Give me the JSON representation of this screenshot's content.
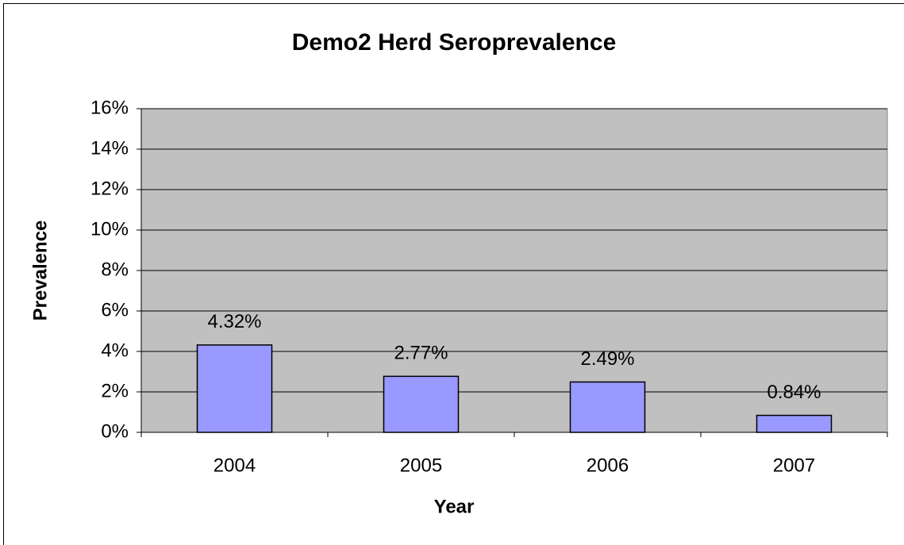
{
  "chart_data": {
    "type": "bar",
    "title": "Demo2 Herd Seroprevalence",
    "x_label": "Year",
    "y_label": "Prevalence",
    "categories": [
      "2004",
      "2005",
      "2006",
      "2007"
    ],
    "values": [
      4.32,
      2.77,
      2.49,
      0.84
    ],
    "value_labels": [
      "4.32%",
      "2.77%",
      "2.49%",
      "0.84%"
    ],
    "color": "#9999ff",
    "ylim": [
      0,
      16
    ],
    "yticks": [
      {
        "value": 0,
        "label": "0%"
      },
      {
        "value": 2,
        "label": "2%"
      },
      {
        "value": 4,
        "label": "4%"
      },
      {
        "value": 6,
        "label": "6%"
      },
      {
        "value": 8,
        "label": "8%"
      },
      {
        "value": 10,
        "label": "10%"
      },
      {
        "value": 12,
        "label": "12%"
      },
      {
        "value": 14,
        "label": "14%"
      },
      {
        "value": 16,
        "label": "16%"
      }
    ],
    "grid": true
  }
}
